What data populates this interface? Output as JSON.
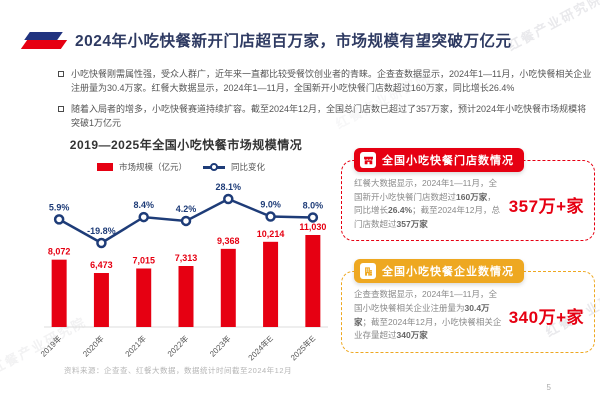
{
  "page": {
    "title": "2024年小吃快餐新开门店超百万家，市场规模有望突破万亿元",
    "watermark": "红餐产业研究院",
    "footer": "资料来源：企查查、红餐大数据，数据统计时间截至2024年12月",
    "page_number": "5"
  },
  "bullets": [
    "小吃快餐刚需属性强，受众人群广，近年来一直都比较受餐饮创业者的青睐。企查查数据显示，2024年1—11月，小吃快餐相关企业注册量为30.4万家。红餐大数据显示，2024年1—11月，全国新开小吃快餐门店数超过160万家，同比增长26.4%",
    "随着入局者的增多，小吃快餐赛道持续扩容。截至2024年12月，全国总门店数已超过了357万家，预计2024年小吃快餐市场规模将突破1万亿元"
  ],
  "chart_data": {
    "type": "bar",
    "subtype": "bar-line-combo",
    "title": "2019—2025年全国小吃快餐市场规模情况",
    "categories": [
      "2019年",
      "2020年",
      "2021年",
      "2022年",
      "2023年",
      "2024年E",
      "2025年E"
    ],
    "series": [
      {
        "name": "市场规模（亿元）",
        "type": "bar",
        "values": [
          8072,
          6473,
          7015,
          7313,
          9368,
          10214,
          11030
        ],
        "color": "#e60012"
      },
      {
        "name": "同比变化",
        "type": "line",
        "unit": "%",
        "values": [
          5.9,
          -19.8,
          8.4,
          4.2,
          28.1,
          9.0,
          8.0
        ],
        "color": "#1e3c78"
      }
    ],
    "legend_position": "top",
    "grid": false,
    "xlabel": "",
    "ylabel": ""
  },
  "boxes": [
    {
      "header": "全国小吃快餐门店数情况",
      "icon": "storefront-icon",
      "accent_color": "#e60012",
      "big_number": "357万+家",
      "text_segments": [
        {
          "t": "红餐大数据显示，2024年1—11月，全国新开小吃快餐门店数超过",
          "b": false
        },
        {
          "t": "160万家",
          "b": true
        },
        {
          "t": "，同比增长",
          "b": false
        },
        {
          "t": "26.4%",
          "b": true
        },
        {
          "t": "；截至2024年12月，总门店数超过",
          "b": false
        },
        {
          "t": "357万家",
          "b": true
        }
      ]
    },
    {
      "header": "全国小吃快餐企业数情况",
      "icon": "building-icon",
      "accent_color": "#eea821",
      "big_number": "340万+家",
      "text_segments": [
        {
          "t": "企查查数据显示，2024年1—11月，全国小吃快餐相关企业注册量为",
          "b": false
        },
        {
          "t": "30.4万家",
          "b": true
        },
        {
          "t": "；截至2024年12月，小吃快餐相关企业存量超过",
          "b": false
        },
        {
          "t": "340万家",
          "b": true
        }
      ]
    }
  ]
}
